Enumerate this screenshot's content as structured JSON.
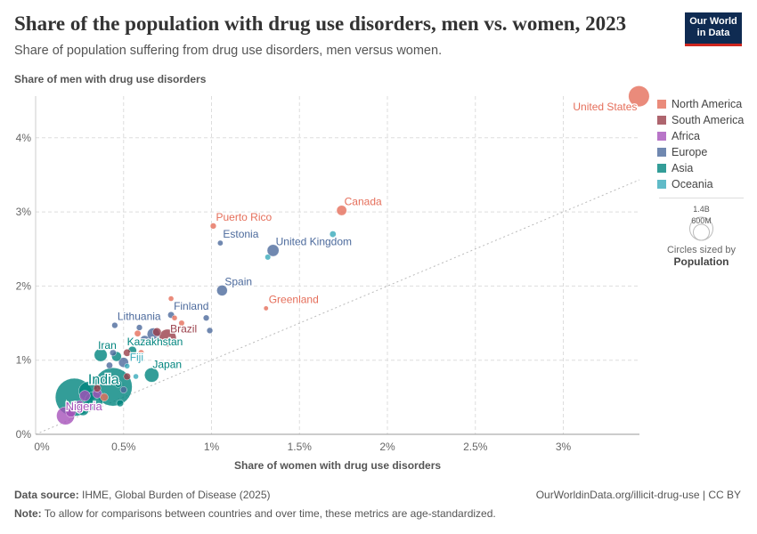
{
  "header": {
    "title": "Share of the population with drug use disorders, men vs. women, 2023",
    "subtitle": "Share of population suffering from drug use disorders, men versus women.",
    "logo": "Our World in Data"
  },
  "footer": {
    "source_label": "Data source:",
    "source": "IHME, Global Burden of Disease (2025)",
    "url": "OurWorldinData.org/illicit-drug-use | CC BY",
    "note_label": "Note:",
    "note": "To allow for comparisons between countries and over time, these metrics are age-standardized."
  },
  "size_legend": {
    "values": [
      "1.4B",
      "600M"
    ],
    "caption": "Circles sized by",
    "variable": "Population"
  },
  "chart_data": {
    "type": "scatter",
    "xlabel": "Share of women with drug use disorders",
    "ylabel": "Share of men with drug use disorders",
    "xlim": [
      0,
      3.45
    ],
    "ylim": [
      0,
      4.6
    ],
    "xticks": [
      "0%",
      "0.5%",
      "1%",
      "1.5%",
      "2%",
      "2.5%",
      "3%"
    ],
    "xtick_values": [
      0,
      0.5,
      1,
      1.5,
      2,
      2.5,
      3
    ],
    "yticks": [
      "0%",
      "1%",
      "2%",
      "3%",
      "4%"
    ],
    "ytick_values": [
      0,
      1,
      2,
      3,
      4
    ],
    "grid": true,
    "legend_placement": "right",
    "reference_line": "y = x",
    "legend": [
      {
        "name": "North America",
        "color": "#e56e5a"
      },
      {
        "name": "South America",
        "color": "#9a3f4a"
      },
      {
        "name": "Africa",
        "color": "#a652ba"
      },
      {
        "name": "Europe",
        "color": "#4c6a9c"
      },
      {
        "name": "Asia",
        "color": "#00847e"
      },
      {
        "name": "Oceania",
        "color": "#38aaba"
      }
    ],
    "points": [
      {
        "label": "United States",
        "region": "North America",
        "x": 3.43,
        "y": 4.56,
        "pop": 340
      },
      {
        "label": "Canada",
        "region": "North America",
        "x": 1.74,
        "y": 3.02,
        "pop": 40
      },
      {
        "label": "Puerto Rico",
        "region": "North America",
        "x": 1.01,
        "y": 2.81,
        "pop": 3
      },
      {
        "label": "Estonia",
        "region": "Europe",
        "x": 1.05,
        "y": 2.58,
        "pop": 1.3
      },
      {
        "label": "United Kingdom",
        "region": "Europe",
        "x": 1.35,
        "y": 2.48,
        "pop": 69
      },
      {
        "label": "",
        "region": "Oceania",
        "x": 1.69,
        "y": 2.7,
        "pop": 5
      },
      {
        "label": "",
        "region": "Oceania",
        "x": 1.32,
        "y": 2.39,
        "pop": 2
      },
      {
        "label": "Spain",
        "region": "Europe",
        "x": 1.06,
        "y": 1.94,
        "pop": 48
      },
      {
        "label": "Greenland",
        "region": "North America",
        "x": 1.31,
        "y": 1.7,
        "pop": 0.06
      },
      {
        "label": "Finland",
        "region": "Europe",
        "x": 0.77,
        "y": 1.61,
        "pop": 5.6
      },
      {
        "label": "",
        "region": "Europe",
        "x": 0.97,
        "y": 1.57,
        "pop": 3
      },
      {
        "label": "",
        "region": "Europe",
        "x": 0.99,
        "y": 1.4,
        "pop": 3
      },
      {
        "label": "",
        "region": "North America",
        "x": 0.77,
        "y": 1.83,
        "pop": 1
      },
      {
        "label": "",
        "region": "North America",
        "x": 0.83,
        "y": 1.5,
        "pop": 2
      },
      {
        "label": "",
        "region": "North America",
        "x": 0.79,
        "y": 1.57,
        "pop": 1
      },
      {
        "label": "Lithuania",
        "region": "Europe",
        "x": 0.45,
        "y": 1.47,
        "pop": 2.9
      },
      {
        "label": "Brazil",
        "region": "South America",
        "x": 0.75,
        "y": 1.3,
        "pop": 211
      },
      {
        "label": "",
        "region": "Europe",
        "x": 0.67,
        "y": 1.35,
        "pop": 84
      },
      {
        "label": "",
        "region": "South America",
        "x": 0.69,
        "y": 1.38,
        "pop": 20
      },
      {
        "label": "",
        "region": "Europe",
        "x": 0.62,
        "y": 1.27,
        "pop": 30
      },
      {
        "label": "",
        "region": "Europe",
        "x": 0.59,
        "y": 1.44,
        "pop": 3
      },
      {
        "label": "",
        "region": "North America",
        "x": 0.58,
        "y": 1.36,
        "pop": 5
      },
      {
        "label": "Kazakhstan",
        "region": "Asia",
        "x": 0.55,
        "y": 1.13,
        "pop": 20
      },
      {
        "label": "",
        "region": "South America",
        "x": 0.52,
        "y": 1.1,
        "pop": 10
      },
      {
        "label": "",
        "region": "North America",
        "x": 0.6,
        "y": 1.1,
        "pop": 3
      },
      {
        "label": "Iran",
        "region": "Asia",
        "x": 0.37,
        "y": 1.07,
        "pop": 91
      },
      {
        "label": "",
        "region": "Asia",
        "x": 0.46,
        "y": 1.05,
        "pop": 35
      },
      {
        "label": "",
        "region": "Europe",
        "x": 0.5,
        "y": 0.97,
        "pop": 38
      },
      {
        "label": "",
        "region": "Europe",
        "x": 0.42,
        "y": 0.93,
        "pop": 5
      },
      {
        "label": "",
        "region": "Europe",
        "x": 0.44,
        "y": 1.1,
        "pop": 5
      },
      {
        "label": "Fiji",
        "region": "Oceania",
        "x": 0.52,
        "y": 0.92,
        "pop": 0.9
      },
      {
        "label": "",
        "region": "South America",
        "x": 0.52,
        "y": 0.78,
        "pop": 8
      },
      {
        "label": "Japan",
        "region": "Asia",
        "x": 0.66,
        "y": 0.8,
        "pop": 124
      },
      {
        "label": "",
        "region": "Oceania",
        "x": 0.57,
        "y": 0.78,
        "pop": 1
      },
      {
        "label": "India",
        "region": "Asia",
        "x": 0.44,
        "y": 0.64,
        "pop": 1440
      },
      {
        "label": "",
        "region": "Asia",
        "x": 0.22,
        "y": 0.5,
        "pop": 1410
      },
      {
        "label": "",
        "region": "Asia",
        "x": 0.3,
        "y": 0.58,
        "pop": 280
      },
      {
        "label": "",
        "region": "Asia",
        "x": 0.33,
        "y": 0.45,
        "pop": 240
      },
      {
        "label": "",
        "region": "Asia",
        "x": 0.27,
        "y": 0.33,
        "pop": 60
      },
      {
        "label": "",
        "region": "Asia",
        "x": 0.25,
        "y": 0.35,
        "pop": 30
      },
      {
        "label": "",
        "region": "Africa",
        "x": 0.28,
        "y": 0.52,
        "pop": 50
      },
      {
        "label": "",
        "region": "Africa",
        "x": 0.35,
        "y": 0.55,
        "pop": 30
      },
      {
        "label": "",
        "region": "Africa",
        "x": 0.25,
        "y": 0.4,
        "pop": 20
      },
      {
        "label": "",
        "region": "South America",
        "x": 0.35,
        "y": 0.62,
        "pop": 10
      },
      {
        "label": "",
        "region": "North America",
        "x": 0.39,
        "y": 0.5,
        "pop": 15
      },
      {
        "label": "",
        "region": "Asia",
        "x": 0.48,
        "y": 0.42,
        "pop": 8
      },
      {
        "label": "",
        "region": "Asia",
        "x": 0.47,
        "y": 0.68,
        "pop": 8
      },
      {
        "label": "",
        "region": "Europe",
        "x": 0.5,
        "y": 0.6,
        "pop": 6
      },
      {
        "label": "Nigeria",
        "region": "Africa",
        "x": 0.17,
        "y": 0.25,
        "pop": 230
      },
      {
        "label": "",
        "region": "Africa",
        "x": 0.2,
        "y": 0.3,
        "pop": 40
      }
    ]
  }
}
